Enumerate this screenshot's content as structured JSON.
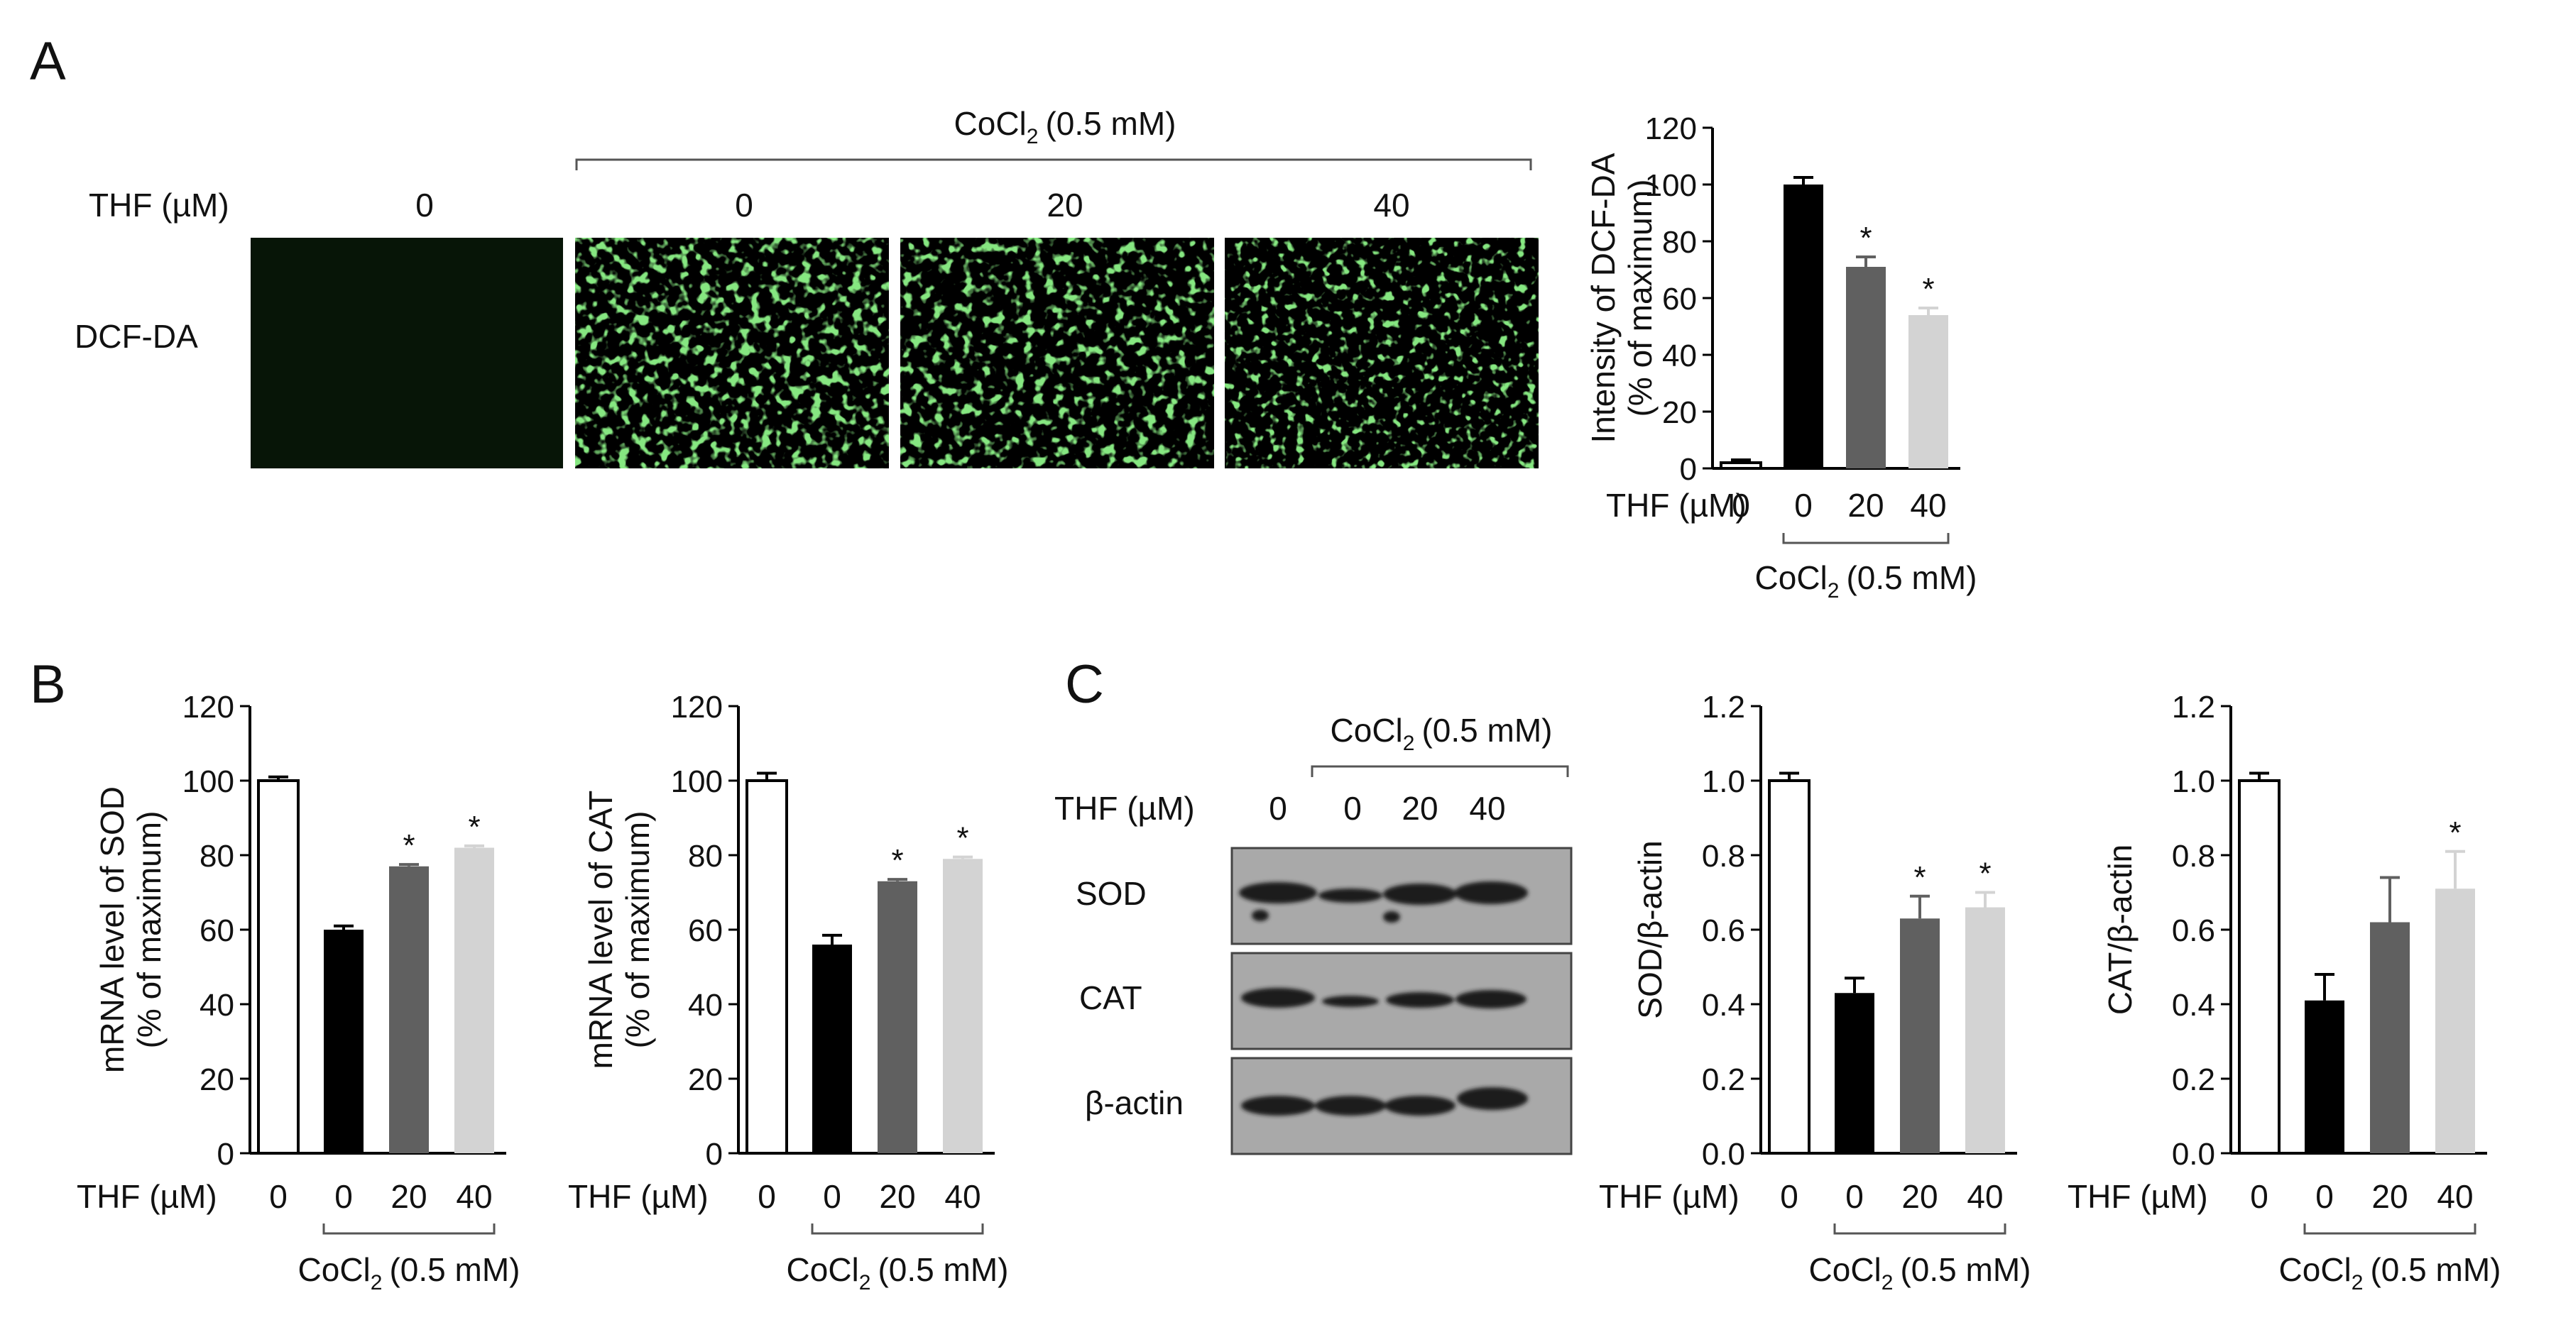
{
  "panel_letters": [
    "A",
    "B",
    "C"
  ],
  "panel_a": {
    "cocl2_label": "CoCl",
    "cocl2_sub": "2",
    "cocl2_conc": "(0.5 mM)",
    "thf_label": "THF (µM)",
    "columns": [
      "0",
      "0",
      "20",
      "40"
    ],
    "row_label": "DCF-DA"
  },
  "panel_c_blot": {
    "cocl2_label": "CoCl",
    "cocl2_sub": "2",
    "cocl2_conc": "(0.5 mM)",
    "thf_label": "THF (µM)",
    "columns": [
      "0",
      "0",
      "20",
      "40"
    ],
    "rows": [
      "SOD",
      "CAT",
      "β-actin"
    ]
  },
  "x_axis": {
    "thf_label": "THF (µM)",
    "categories": [
      "0",
      "0",
      "20",
      "40"
    ],
    "cocl2_label": "CoCl",
    "cocl2_sub": "2",
    "cocl2_conc": "(0.5 mM)"
  },
  "colors": {
    "bar_fills": [
      "#ffffff",
      "#000000",
      "#606060",
      "#d3d3d3"
    ],
    "fluorescence": "#3ec43a",
    "blot_background": "#a9a9a9",
    "band": "#1a1a1a"
  },
  "chart_data": [
    {
      "id": "dcfda",
      "type": "bar",
      "categories": [
        "0",
        "0",
        "20",
        "40"
      ],
      "values": [
        2,
        100,
        71,
        54
      ],
      "errors": [
        1,
        2.5,
        3.5,
        2.5
      ],
      "significant": [
        false,
        false,
        true,
        true
      ],
      "ylabel_lines": [
        "Intensity of DCF-DA",
        "(% of maximum)"
      ],
      "ylim": [
        0,
        120
      ],
      "yticks": [
        0,
        20,
        40,
        60,
        80,
        100,
        120
      ],
      "ytick_labels": [
        "0",
        "20",
        "40",
        "60",
        "80",
        "100",
        "120"
      ]
    },
    {
      "id": "sod_mrna",
      "type": "bar",
      "categories": [
        "0",
        "0",
        "20",
        "40"
      ],
      "values": [
        100,
        60,
        77,
        82
      ],
      "errors": [
        1,
        1,
        0.5,
        0.5
      ],
      "significant": [
        false,
        false,
        true,
        true
      ],
      "ylabel_lines": [
        "mRNA level of SOD",
        "(% of maximum)"
      ],
      "ylim": [
        0,
        120
      ],
      "yticks": [
        0,
        20,
        40,
        60,
        80,
        100,
        120
      ],
      "ytick_labels": [
        "0",
        "20",
        "40",
        "60",
        "80",
        "100",
        "120"
      ]
    },
    {
      "id": "cat_mrna",
      "type": "bar",
      "categories": [
        "0",
        "0",
        "20",
        "40"
      ],
      "values": [
        100,
        56,
        73,
        79
      ],
      "errors": [
        2,
        2.5,
        0.5,
        0.5
      ],
      "significant": [
        false,
        false,
        true,
        true
      ],
      "ylabel_lines": [
        "mRNA level of CAT",
        "(% of maximum)"
      ],
      "ylim": [
        0,
        120
      ],
      "yticks": [
        0,
        20,
        40,
        60,
        80,
        100,
        120
      ],
      "ytick_labels": [
        "0",
        "20",
        "40",
        "60",
        "80",
        "100",
        "120"
      ]
    },
    {
      "id": "sod_actin",
      "type": "bar",
      "categories": [
        "0",
        "0",
        "20",
        "40"
      ],
      "values": [
        1.0,
        0.43,
        0.63,
        0.66
      ],
      "errors": [
        0.02,
        0.04,
        0.06,
        0.04
      ],
      "significant": [
        false,
        false,
        true,
        true
      ],
      "ylabel_lines": [
        "SOD/β-actin"
      ],
      "ylim": [
        0,
        1.2
      ],
      "yticks": [
        0,
        0.2,
        0.4,
        0.6,
        0.8,
        1.0,
        1.2
      ],
      "ytick_labels": [
        "0.0",
        "0.2",
        "0.4",
        "0.6",
        "0.8",
        "1.0",
        "1.2"
      ]
    },
    {
      "id": "cat_actin",
      "type": "bar",
      "categories": [
        "0",
        "0",
        "20",
        "40"
      ],
      "values": [
        1.0,
        0.41,
        0.62,
        0.71
      ],
      "errors": [
        0.02,
        0.07,
        0.12,
        0.1
      ],
      "significant": [
        false,
        false,
        false,
        true
      ],
      "ylabel_lines": [
        "CAT/β-actin"
      ],
      "ylim": [
        0,
        1.2
      ],
      "yticks": [
        0,
        0.2,
        0.4,
        0.6,
        0.8,
        1.0,
        1.2
      ],
      "ytick_labels": [
        "0.0",
        "0.2",
        "0.4",
        "0.6",
        "0.8",
        "1.0",
        "1.2"
      ]
    }
  ]
}
